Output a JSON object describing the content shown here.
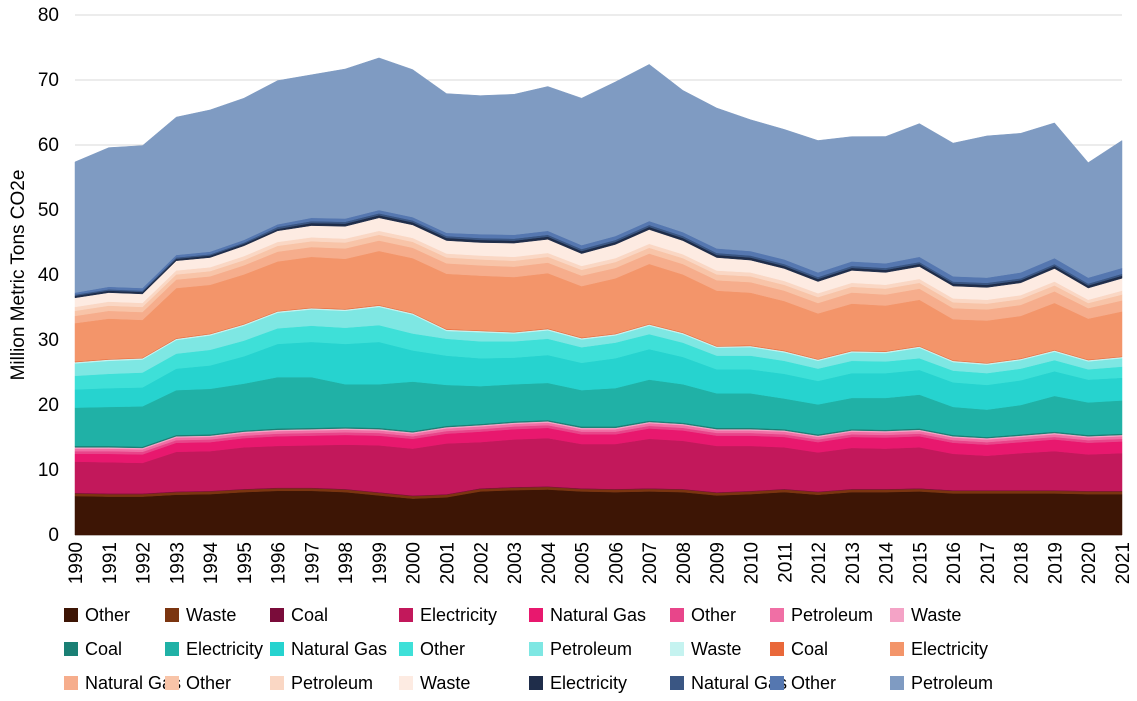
{
  "chart_data": {
    "type": "area",
    "stacked": true,
    "ylabel": "Million Metric Tons CO2e",
    "xlabel": "",
    "title": "",
    "ylim": [
      0,
      80
    ],
    "yticks": [
      0,
      10,
      20,
      30,
      40,
      50,
      60,
      70,
      80
    ],
    "grid": "horizontal",
    "legend_position": "bottom",
    "x": [
      1990,
      1991,
      1992,
      1993,
      1994,
      1995,
      1996,
      1997,
      1998,
      1999,
      2000,
      2001,
      2002,
      2003,
      2004,
      2005,
      2006,
      2007,
      2008,
      2009,
      2010,
      2011,
      2012,
      2013,
      2014,
      2015,
      2016,
      2017,
      2018,
      2019,
      2020,
      2021
    ],
    "series": [
      {
        "name": "Other",
        "color": "#3d1505",
        "values": [
          6,
          5.9,
          5.9,
          6.2,
          6.3,
          6.6,
          6.8,
          6.8,
          6.6,
          6.1,
          5.6,
          5.8,
          6.7,
          6.9,
          7.0,
          6.7,
          6.6,
          6.7,
          6.6,
          6.1,
          6.3,
          6.6,
          6.2,
          6.6,
          6.6,
          6.7,
          6.4,
          6.4,
          6.4,
          6.4,
          6.3,
          6.3
        ]
      },
      {
        "name": "Waste",
        "color": "#7b3510",
        "values": [
          0.4,
          0.4,
          0.4,
          0.4,
          0.4,
          0.4,
          0.4,
          0.4,
          0.4,
          0.4,
          0.4,
          0.4,
          0.4,
          0.4,
          0.4,
          0.4,
          0.4,
          0.4,
          0.4,
          0.4,
          0.4,
          0.4,
          0.4,
          0.4,
          0.4,
          0.4,
          0.4,
          0.4,
          0.4,
          0.4,
          0.4,
          0.4
        ]
      },
      {
        "name": "Coal",
        "color": "#7a0c3a",
        "values": [
          0.1,
          0.1,
          0.1,
          0.1,
          0.1,
          0.1,
          0.1,
          0.1,
          0.1,
          0.1,
          0.1,
          0.1,
          0.1,
          0.1,
          0.1,
          0.1,
          0.1,
          0.1,
          0.1,
          0.1,
          0.1,
          0.1,
          0.1,
          0.1,
          0.1,
          0.1,
          0.1,
          0.1,
          0.1,
          0.1,
          0.1,
          0.1
        ]
      },
      {
        "name": "Electricity",
        "color": "#c2185b",
        "values": [
          4.8,
          4.8,
          4.7,
          6.1,
          6.1,
          6.4,
          6.4,
          6.5,
          6.8,
          7.2,
          7.2,
          7.8,
          7.1,
          7.3,
          7.4,
          6.8,
          6.9,
          7.6,
          7.4,
          7.1,
          6.9,
          6.4,
          6.0,
          6.3,
          6.2,
          6.3,
          5.6,
          5.3,
          5.7,
          6.0,
          5.6,
          5.8
        ]
      },
      {
        "name": "Natural Gas",
        "color": "#e8186e",
        "values": [
          1.2,
          1.3,
          1.3,
          1.4,
          1.4,
          1.4,
          1.5,
          1.5,
          1.5,
          1.5,
          1.5,
          1.5,
          1.6,
          1.6,
          1.6,
          1.5,
          1.5,
          1.6,
          1.6,
          1.6,
          1.6,
          1.6,
          1.6,
          1.7,
          1.7,
          1.7,
          1.7,
          1.7,
          1.7,
          1.8,
          1.8,
          1.8
        ]
      },
      {
        "name": "Other",
        "color": "#e8458a",
        "values": [
          0.4,
          0.4,
          0.4,
          0.4,
          0.4,
          0.4,
          0.4,
          0.4,
          0.4,
          0.4,
          0.4,
          0.4,
          0.4,
          0.4,
          0.4,
          0.4,
          0.4,
          0.4,
          0.4,
          0.4,
          0.4,
          0.4,
          0.4,
          0.4,
          0.4,
          0.4,
          0.4,
          0.4,
          0.4,
          0.4,
          0.4,
          0.4
        ]
      },
      {
        "name": "Petroleum",
        "color": "#f06fa5",
        "values": [
          0.4,
          0.4,
          0.4,
          0.4,
          0.4,
          0.4,
          0.4,
          0.4,
          0.4,
          0.4,
          0.4,
          0.4,
          0.4,
          0.4,
          0.4,
          0.4,
          0.4,
          0.4,
          0.4,
          0.4,
          0.4,
          0.4,
          0.4,
          0.4,
          0.4,
          0.4,
          0.4,
          0.4,
          0.4,
          0.4,
          0.4,
          0.4
        ]
      },
      {
        "name": "Waste",
        "color": "#f4a3c6",
        "values": [
          0.2,
          0.2,
          0.2,
          0.2,
          0.2,
          0.2,
          0.2,
          0.2,
          0.2,
          0.2,
          0.2,
          0.2,
          0.2,
          0.2,
          0.2,
          0.2,
          0.2,
          0.2,
          0.2,
          0.2,
          0.2,
          0.2,
          0.2,
          0.2,
          0.2,
          0.2,
          0.2,
          0.2,
          0.2,
          0.2,
          0.2,
          0.2
        ]
      },
      {
        "name": "Coal",
        "color": "#1a7f74",
        "values": [
          0.2,
          0.2,
          0.2,
          0.2,
          0.2,
          0.2,
          0.2,
          0.2,
          0.2,
          0.2,
          0.2,
          0.2,
          0.2,
          0.2,
          0.2,
          0.2,
          0.2,
          0.2,
          0.2,
          0.2,
          0.2,
          0.2,
          0.2,
          0.2,
          0.2,
          0.2,
          0.2,
          0.2,
          0.2,
          0.2,
          0.2,
          0.2
        ]
      },
      {
        "name": "Electricity",
        "color": "#20b1a6",
        "values": [
          5.9,
          6.0,
          6.2,
          6.9,
          7.0,
          7.2,
          7.9,
          7.8,
          6.6,
          6.7,
          7.6,
          6.3,
          5.8,
          5.7,
          5.7,
          5.6,
          5.9,
          6.3,
          5.9,
          5.3,
          5.3,
          4.7,
          4.6,
          4.8,
          4.9,
          5.2,
          4.3,
          4.2,
          4.5,
          5.5,
          5.0,
          5.1
        ]
      },
      {
        "name": "Natural Gas",
        "color": "#26d3cf",
        "values": [
          2.8,
          2.9,
          2.9,
          3.3,
          3.6,
          4.2,
          5.1,
          5.4,
          6.2,
          6.5,
          4.8,
          4.5,
          4.3,
          4.1,
          4.3,
          4.2,
          4.6,
          4.7,
          4.2,
          3.7,
          3.7,
          3.8,
          3.6,
          3.8,
          3.8,
          3.8,
          3.8,
          3.8,
          3.8,
          3.8,
          3.5,
          3.5
        ]
      },
      {
        "name": "Other",
        "color": "#3ee0d8",
        "values": [
          2.1,
          2.2,
          2.3,
          2.3,
          2.4,
          2.4,
          2.4,
          2.5,
          2.5,
          2.6,
          2.6,
          2.6,
          2.6,
          2.5,
          2.5,
          2.4,
          2.4,
          2.3,
          2.2,
          2.1,
          2.1,
          2.0,
          1.9,
          1.9,
          1.8,
          1.8,
          1.8,
          1.8,
          1.8,
          1.7,
          1.6,
          1.7
        ]
      },
      {
        "name": "Petroleum",
        "color": "#7ee7e3",
        "values": [
          1.9,
          2.0,
          2.0,
          2.1,
          2.2,
          2.3,
          2.4,
          2.5,
          2.6,
          2.8,
          2.9,
          1.2,
          1.4,
          1.2,
          1.3,
          1.2,
          1.1,
          1.3,
          1.3,
          1.2,
          1.3,
          1.3,
          1.2,
          1.3,
          1.3,
          1.6,
          1.3,
          1.3,
          1.3,
          1.3,
          1.2,
          1.3
        ]
      },
      {
        "name": "Waste",
        "color": "#c5f3f0",
        "values": [
          0.2,
          0.2,
          0.2,
          0.2,
          0.2,
          0.2,
          0.2,
          0.2,
          0.2,
          0.2,
          0.2,
          0.2,
          0.2,
          0.2,
          0.2,
          0.2,
          0.2,
          0.2,
          0.2,
          0.2,
          0.2,
          0.2,
          0.2,
          0.2,
          0.2,
          0.2,
          0.2,
          0.2,
          0.2,
          0.2,
          0.2,
          0.2
        ]
      },
      {
        "name": "Coal",
        "color": "#e9683a",
        "values": [
          0.1,
          0.1,
          0.1,
          0.1,
          0.1,
          0.1,
          0.1,
          0.1,
          0.1,
          0.1,
          0.1,
          0.1,
          0.1,
          0.1,
          0.1,
          0.1,
          0.1,
          0.1,
          0.1,
          0.1,
          0.1,
          0.1,
          0.1,
          0.1,
          0.1,
          0.1,
          0.1,
          0.1,
          0.1,
          0.1,
          0.1,
          0.1
        ]
      },
      {
        "name": "Electricity",
        "color": "#f3956a",
        "values": [
          5.9,
          6.2,
          5.8,
          7.7,
          7.5,
          7.6,
          7.6,
          7.8,
          7.7,
          8.3,
          8.4,
          8.5,
          8.4,
          8.4,
          8.5,
          7.9,
          8.5,
          9.2,
          8.9,
          8.5,
          8.1,
          7.6,
          7.0,
          7.2,
          7.0,
          7.1,
          6.3,
          6.5,
          6.5,
          7.2,
          6.3,
          6.9
        ]
      },
      {
        "name": "Natural Gas",
        "color": "#f6ad8c",
        "values": [
          1.1,
          1.2,
          1.2,
          1.3,
          1.3,
          1.4,
          1.5,
          1.5,
          1.6,
          1.6,
          1.6,
          1.6,
          1.6,
          1.6,
          1.6,
          1.6,
          1.6,
          1.6,
          1.6,
          1.6,
          1.6,
          1.6,
          1.6,
          1.7,
          1.7,
          1.7,
          1.7,
          1.7,
          1.7,
          1.8,
          1.6,
          1.7
        ]
      },
      {
        "name": "Other",
        "color": "#f8c4a8",
        "values": [
          0.8,
          0.8,
          0.8,
          0.8,
          0.8,
          0.8,
          0.9,
          0.9,
          0.9,
          0.9,
          0.9,
          0.9,
          0.9,
          0.9,
          0.9,
          0.9,
          0.9,
          0.9,
          0.9,
          0.9,
          0.9,
          0.9,
          0.9,
          0.9,
          0.9,
          0.9,
          0.9,
          0.9,
          0.9,
          0.9,
          0.8,
          0.9
        ]
      },
      {
        "name": "Petroleum",
        "color": "#fad7c4",
        "values": [
          0.6,
          0.6,
          0.6,
          0.6,
          0.6,
          0.6,
          0.6,
          0.6,
          0.6,
          0.6,
          0.6,
          0.6,
          0.6,
          0.6,
          0.6,
          0.6,
          0.6,
          0.6,
          0.6,
          0.6,
          0.6,
          0.6,
          0.6,
          0.6,
          0.6,
          0.6,
          0.6,
          0.6,
          0.6,
          0.6,
          0.5,
          0.6
        ]
      },
      {
        "name": "Waste",
        "color": "#fdebe2",
        "values": [
          1.4,
          1.4,
          1.4,
          1.5,
          1.5,
          1.6,
          1.7,
          1.8,
          1.9,
          2.0,
          2.0,
          2.0,
          2.0,
          2.1,
          2.1,
          1.9,
          2.1,
          2.2,
          2.1,
          2.0,
          1.9,
          1.9,
          1.8,
          1.9,
          1.9,
          1.9,
          1.9,
          1.9,
          1.9,
          2.0,
          1.8,
          1.9
        ]
      },
      {
        "name": "Electricity",
        "color": "#1f2d4a",
        "values": [
          0.3,
          0.3,
          0.3,
          0.3,
          0.3,
          0.3,
          0.3,
          0.4,
          0.4,
          0.4,
          0.4,
          0.4,
          0.4,
          0.4,
          0.4,
          0.4,
          0.4,
          0.4,
          0.4,
          0.4,
          0.4,
          0.4,
          0.4,
          0.4,
          0.4,
          0.4,
          0.4,
          0.4,
          0.4,
          0.4,
          0.4,
          0.4
        ]
      },
      {
        "name": "Natural Gas",
        "color": "#3a5683",
        "values": [
          0.2,
          0.2,
          0.2,
          0.2,
          0.2,
          0.2,
          0.3,
          0.3,
          0.3,
          0.3,
          0.3,
          0.3,
          0.3,
          0.3,
          0.3,
          0.3,
          0.3,
          0.3,
          0.3,
          0.3,
          0.3,
          0.3,
          0.3,
          0.3,
          0.3,
          0.3,
          0.3,
          0.3,
          0.3,
          0.3,
          0.3,
          0.3
        ]
      },
      {
        "name": "Other",
        "color": "#5577b0",
        "values": [
          0.3,
          0.4,
          0.4,
          0.4,
          0.4,
          0.4,
          0.4,
          0.5,
          0.5,
          0.5,
          0.5,
          0.5,
          0.6,
          0.6,
          0.6,
          0.6,
          0.6,
          0.6,
          0.6,
          0.7,
          0.7,
          0.7,
          0.7,
          0.7,
          0.7,
          0.8,
          0.8,
          0.8,
          0.9,
          0.9,
          0.9,
          0.9
        ]
      },
      {
        "name": "Petroleum",
        "color": "#7f9bc2",
        "values": [
          20.1,
          21.4,
          21.9,
          21.2,
          21.8,
          21.8,
          22.1,
          22.0,
          23.0,
          23.4,
          22.7,
          21.4,
          21.3,
          21.6,
          22.2,
          22.6,
          23.7,
          24.1,
          21.8,
          21.6,
          20.2,
          20.0,
          20.3,
          19.2,
          19.5,
          20.5,
          20.5,
          21.8,
          21.4,
          20.8,
          17.7,
          19.6
        ]
      }
    ]
  }
}
